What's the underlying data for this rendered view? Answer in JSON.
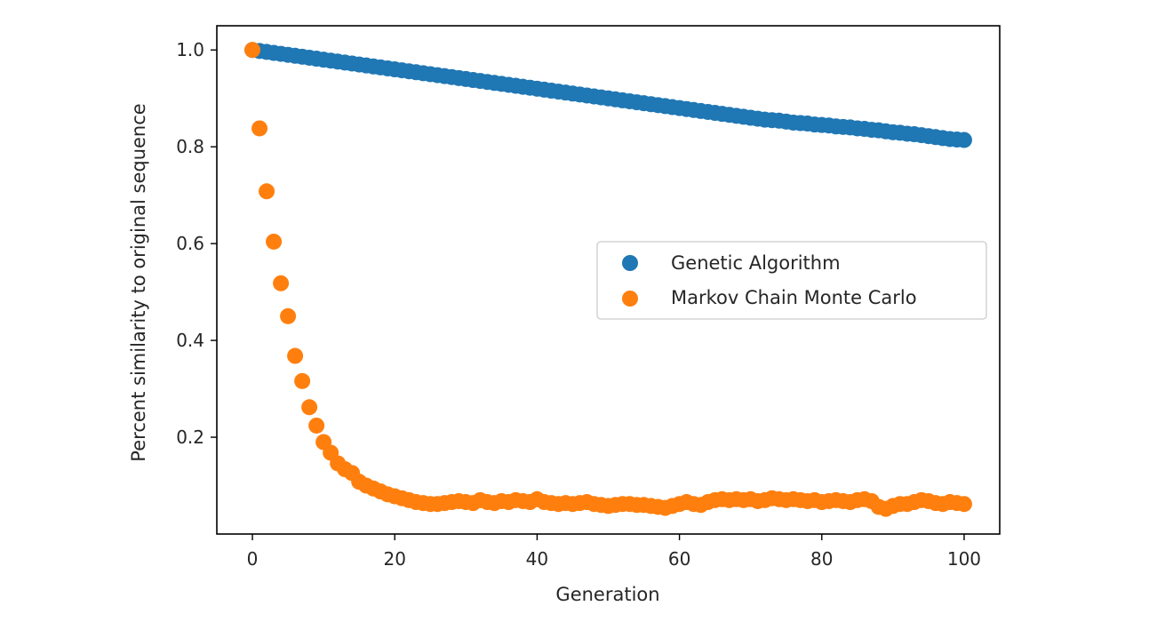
{
  "chart_data": {
    "type": "scatter",
    "title": "",
    "xlabel": "Generation",
    "ylabel": "Percent similarity to original sequence",
    "xlim": [
      -5,
      105
    ],
    "ylim": [
      0.0,
      1.05
    ],
    "xticks": [
      0,
      20,
      40,
      60,
      80,
      100
    ],
    "yticks": [
      0.2,
      0.4,
      0.6,
      0.8,
      1.0
    ],
    "grid": false,
    "legend_position": "center-right",
    "series": [
      {
        "name": "Genetic Algorithm",
        "color": "#1f77b4",
        "y": [
          1.0,
          0.998,
          0.996,
          0.994,
          0.992,
          0.99,
          0.988,
          0.986,
          0.984,
          0.982,
          0.98,
          0.978,
          0.976,
          0.974,
          0.972,
          0.97,
          0.968,
          0.966,
          0.964,
          0.962,
          0.96,
          0.958,
          0.956,
          0.954,
          0.952,
          0.95,
          0.948,
          0.946,
          0.944,
          0.942,
          0.94,
          0.938,
          0.936,
          0.934,
          0.932,
          0.93,
          0.928,
          0.926,
          0.924,
          0.922,
          0.92,
          0.918,
          0.916,
          0.914,
          0.912,
          0.91,
          0.908,
          0.906,
          0.904,
          0.902,
          0.9,
          0.898,
          0.896,
          0.894,
          0.892,
          0.89,
          0.888,
          0.886,
          0.884,
          0.882,
          0.88,
          0.878,
          0.876,
          0.874,
          0.872,
          0.87,
          0.868,
          0.866,
          0.864,
          0.862,
          0.86,
          0.858,
          0.856,
          0.855,
          0.854,
          0.852,
          0.85,
          0.849,
          0.848,
          0.846,
          0.845,
          0.844,
          0.842,
          0.841,
          0.84,
          0.838,
          0.837,
          0.835,
          0.834,
          0.832,
          0.83,
          0.829,
          0.827,
          0.826,
          0.824,
          0.822,
          0.82,
          0.818,
          0.816,
          0.815,
          0.814
        ]
      },
      {
        "name": "Markov Chain Monte Carlo",
        "color": "#ff7f0e",
        "y": [
          1.0,
          0.838,
          0.708,
          0.604,
          0.518,
          0.45,
          0.368,
          0.316,
          0.262,
          0.224,
          0.19,
          0.168,
          0.146,
          0.134,
          0.126,
          0.108,
          0.1,
          0.094,
          0.088,
          0.082,
          0.078,
          0.074,
          0.07,
          0.066,
          0.064,
          0.062,
          0.062,
          0.064,
          0.066,
          0.068,
          0.066,
          0.064,
          0.07,
          0.066,
          0.064,
          0.068,
          0.066,
          0.07,
          0.068,
          0.066,
          0.072,
          0.066,
          0.064,
          0.062,
          0.064,
          0.062,
          0.064,
          0.066,
          0.062,
          0.06,
          0.058,
          0.06,
          0.062,
          0.062,
          0.06,
          0.06,
          0.058,
          0.056,
          0.054,
          0.058,
          0.062,
          0.066,
          0.062,
          0.06,
          0.066,
          0.07,
          0.072,
          0.07,
          0.072,
          0.07,
          0.072,
          0.068,
          0.07,
          0.074,
          0.072,
          0.07,
          0.072,
          0.07,
          0.068,
          0.07,
          0.066,
          0.068,
          0.07,
          0.068,
          0.066,
          0.07,
          0.072,
          0.068,
          0.056,
          0.052,
          0.058,
          0.062,
          0.062,
          0.066,
          0.07,
          0.068,
          0.064,
          0.062,
          0.066,
          0.064,
          0.062
        ]
      }
    ]
  }
}
